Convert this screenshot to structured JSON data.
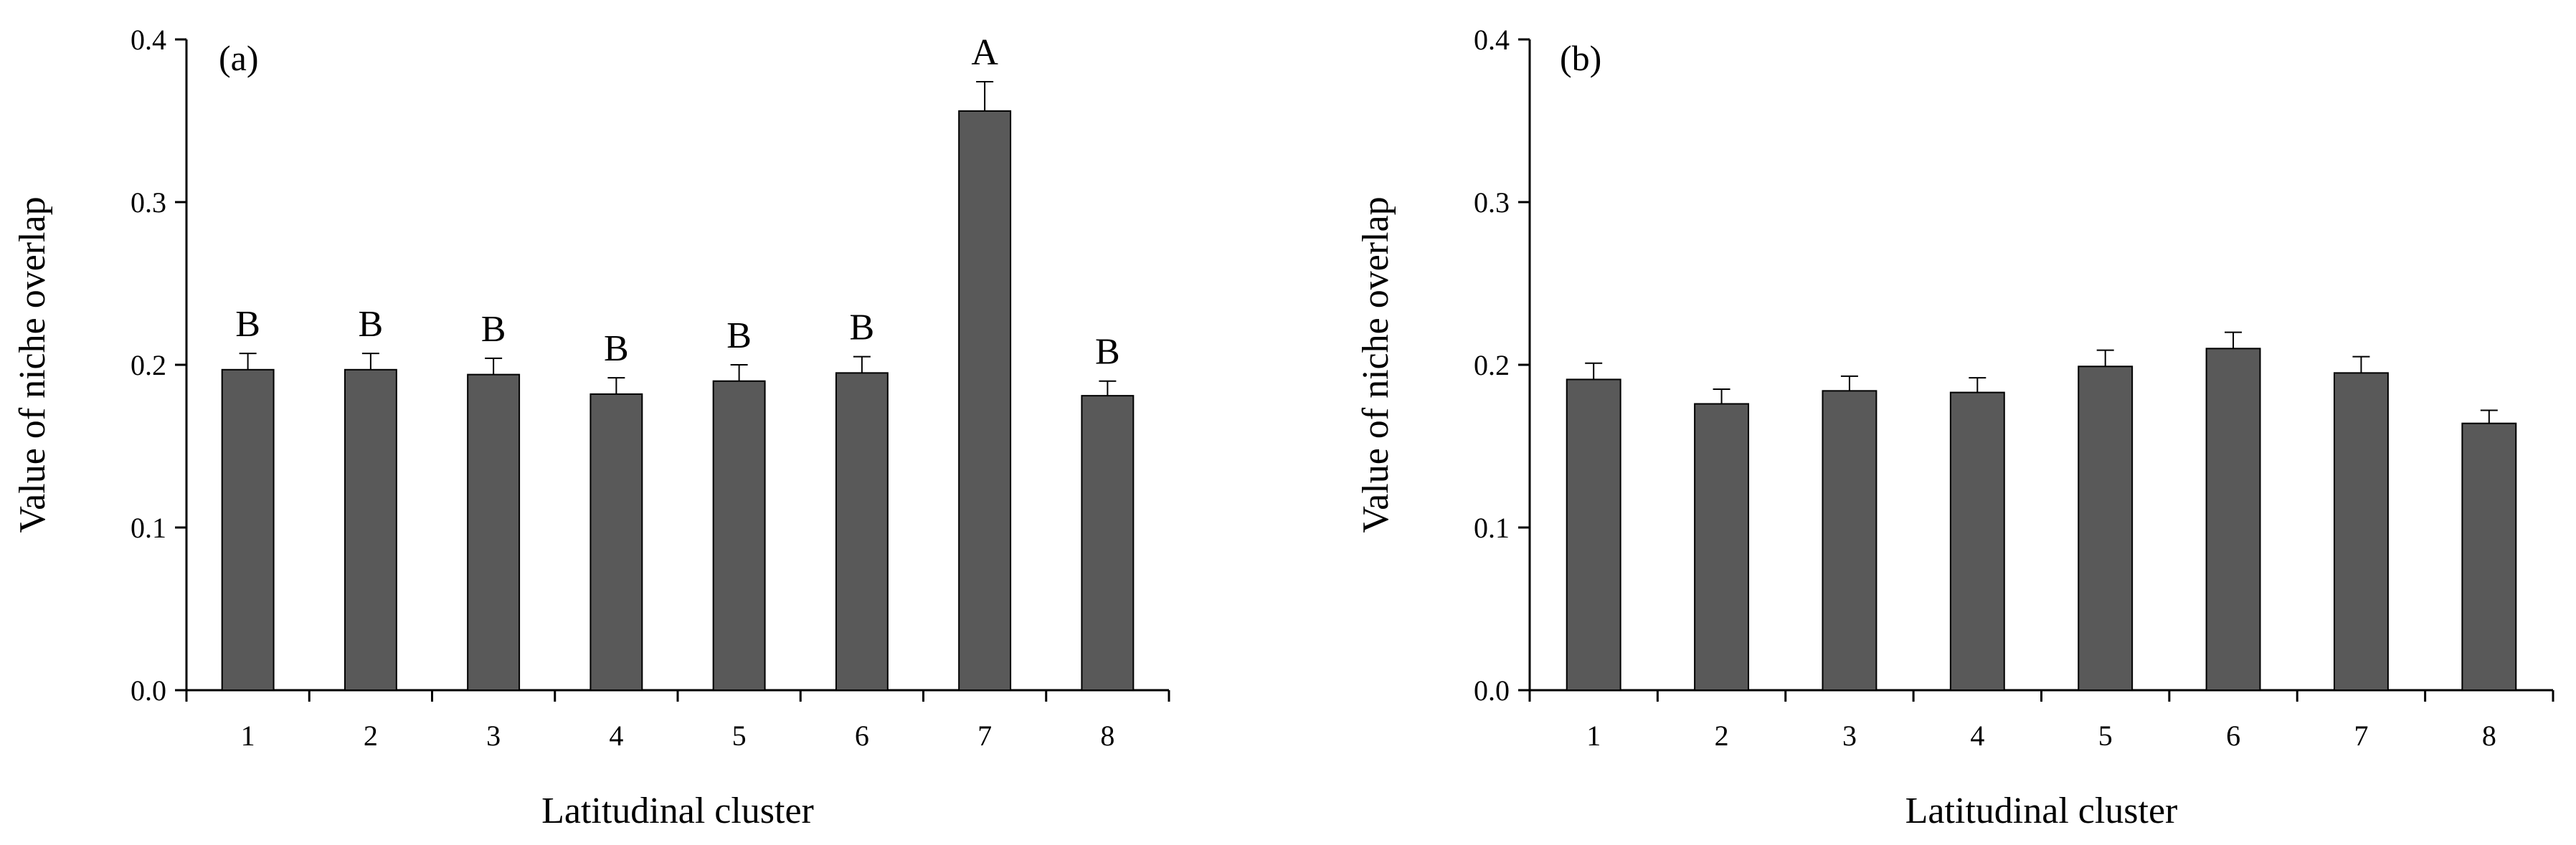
{
  "chart_data": [
    {
      "type": "bar",
      "panel_label": "(a)",
      "categories": [
        "1",
        "2",
        "3",
        "4",
        "5",
        "6",
        "7",
        "8"
      ],
      "values": [
        0.197,
        0.197,
        0.194,
        0.182,
        0.19,
        0.195,
        0.356,
        0.181
      ],
      "errors": [
        0.01,
        0.01,
        0.01,
        0.01,
        0.01,
        0.01,
        0.018,
        0.009
      ],
      "letters": [
        "B",
        "B",
        "B",
        "B",
        "B",
        "B",
        "A",
        "B"
      ],
      "xlabel": "Latitudinal cluster",
      "ylabel": "Value of niche overlap",
      "ylim": [
        0,
        0.4
      ],
      "yticks": [
        "0.0",
        "0.1",
        "0.2",
        "0.3",
        "0.4"
      ],
      "bar_color": "#595959",
      "grid": false
    },
    {
      "type": "bar",
      "panel_label": "(b)",
      "categories": [
        "1",
        "2",
        "3",
        "4",
        "5",
        "6",
        "7",
        "8"
      ],
      "values": [
        0.191,
        0.176,
        0.184,
        0.183,
        0.199,
        0.21,
        0.195,
        0.164
      ],
      "errors": [
        0.01,
        0.009,
        0.009,
        0.009,
        0.01,
        0.01,
        0.01,
        0.008
      ],
      "xlabel": "Latitudinal cluster",
      "ylabel": "Value of niche overlap",
      "ylim": [
        0,
        0.4
      ],
      "yticks": [
        "0.0",
        "0.1",
        "0.2",
        "0.3",
        "0.4"
      ],
      "bar_color": "#595959",
      "grid": false
    }
  ]
}
